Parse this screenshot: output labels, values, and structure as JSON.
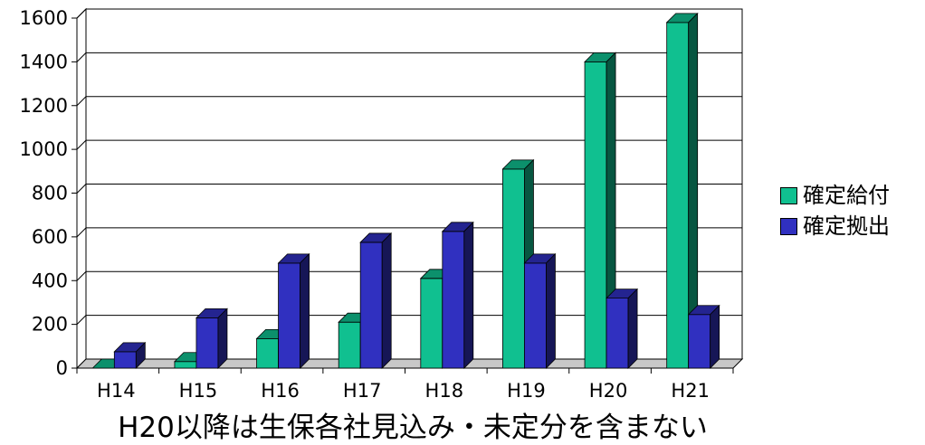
{
  "chart_data": {
    "type": "bar",
    "categories": [
      "H14",
      "H15",
      "H16",
      "H17",
      "H18",
      "H19",
      "H20",
      "H21"
    ],
    "series": [
      {
        "name": "確定給付",
        "color": "#10c090",
        "values": [
          0,
          30,
          135,
          210,
          410,
          910,
          1400,
          1580
        ]
      },
      {
        "name": "確定拠出",
        "color": "#3030c0",
        "values": [
          75,
          230,
          480,
          575,
          625,
          480,
          320,
          245
        ]
      }
    ],
    "ylim": [
      0,
      1600
    ],
    "yticks": [
      0,
      200,
      400,
      600,
      800,
      1000,
      1200,
      1400,
      1600
    ],
    "grid": true,
    "legend_position": "right",
    "note": "H20以降は生保各社見込み・未定分を含まない"
  }
}
